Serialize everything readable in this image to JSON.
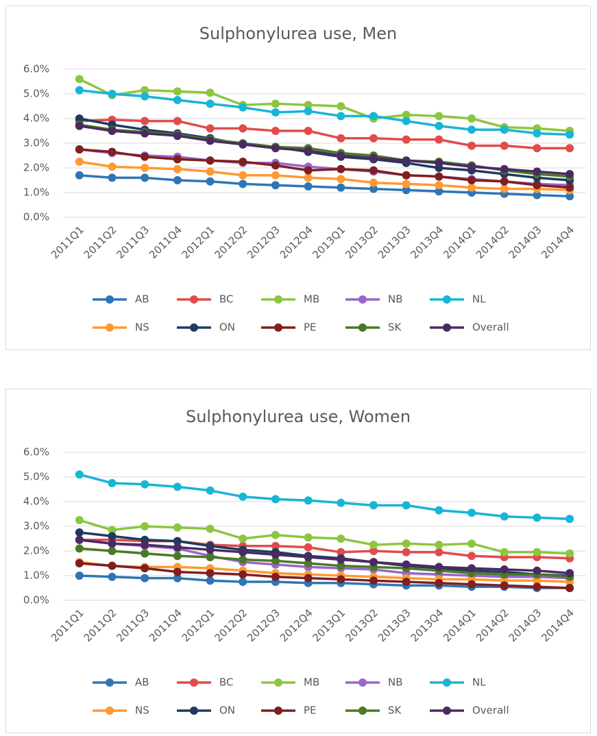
{
  "chart_data": [
    {
      "type": "line",
      "title": "Sulphonylurea use, Men",
      "categories": [
        "2011Q1",
        "2011Q2",
        "2011Q3",
        "2011Q4",
        "2012Q1",
        "2012Q2",
        "2012Q3",
        "2012Q4",
        "2013Q1",
        "2013Q2",
        "2013Q3",
        "2013Q4",
        "2014Q1",
        "2014Q2",
        "2014Q3",
        "2014Q4"
      ],
      "ylim": [
        0,
        6
      ],
      "yticks": [
        {
          "value": 0,
          "label": "0.0%"
        },
        {
          "value": 1,
          "label": "1.0%"
        },
        {
          "value": 2,
          "label": "2.0%"
        },
        {
          "value": 3,
          "label": "3.0%"
        },
        {
          "value": 4,
          "label": "4.0%"
        },
        {
          "value": 5,
          "label": "5.0%"
        },
        {
          "value": 6,
          "label": "6.0%"
        }
      ],
      "grid": true,
      "legend": "bottom",
      "series": [
        {
          "name": "AB",
          "color": "#2e75b6",
          "values": [
            1.7,
            1.6,
            1.6,
            1.5,
            1.45,
            1.35,
            1.3,
            1.25,
            1.2,
            1.15,
            1.1,
            1.05,
            1.0,
            0.95,
            0.9,
            0.85
          ]
        },
        {
          "name": "BC",
          "color": "#e04c4c",
          "values": [
            3.9,
            3.95,
            3.9,
            3.9,
            3.6,
            3.6,
            3.5,
            3.5,
            3.2,
            3.2,
            3.15,
            3.15,
            2.9,
            2.9,
            2.8,
            2.8
          ]
        },
        {
          "name": "MB",
          "color": "#8cc63f",
          "values": [
            5.6,
            4.95,
            5.15,
            5.1,
            5.05,
            4.55,
            4.6,
            4.55,
            4.5,
            4.0,
            4.15,
            4.1,
            4.0,
            3.65,
            3.6,
            3.5
          ]
        },
        {
          "name": "NB",
          "color": "#9966cc",
          "values": [
            2.75,
            2.6,
            2.5,
            2.45,
            2.3,
            2.2,
            2.2,
            2.05,
            1.95,
            1.85,
            1.7,
            1.65,
            1.55,
            1.45,
            1.35,
            1.3
          ]
        },
        {
          "name": "NL",
          "color": "#17b5d6",
          "values": [
            5.15,
            5.0,
            4.9,
            4.75,
            4.6,
            4.45,
            4.25,
            4.3,
            4.1,
            4.1,
            3.9,
            3.7,
            3.55,
            3.55,
            3.4,
            3.35
          ]
        },
        {
          "name": "NS",
          "color": "#ff9933",
          "values": [
            2.25,
            2.05,
            2.0,
            1.95,
            1.85,
            1.7,
            1.7,
            1.6,
            1.55,
            1.4,
            1.35,
            1.3,
            1.2,
            1.15,
            1.15,
            1.1
          ]
        },
        {
          "name": "ON",
          "color": "#1f3a60",
          "values": [
            4.0,
            3.75,
            3.55,
            3.4,
            3.2,
            2.95,
            2.85,
            2.65,
            2.45,
            2.35,
            2.2,
            2.0,
            1.9,
            1.75,
            1.6,
            1.5
          ]
        },
        {
          "name": "PE",
          "color": "#7f1f1f",
          "values": [
            2.75,
            2.65,
            2.45,
            2.35,
            2.3,
            2.25,
            2.1,
            1.9,
            1.95,
            1.9,
            1.7,
            1.65,
            1.5,
            1.45,
            1.3,
            1.2
          ]
        },
        {
          "name": "SK",
          "color": "#4a7a23",
          "values": [
            3.75,
            3.55,
            3.45,
            3.35,
            3.15,
            3.0,
            2.85,
            2.8,
            2.6,
            2.5,
            2.3,
            2.25,
            2.1,
            1.9,
            1.75,
            1.65
          ]
        },
        {
          "name": "Overall",
          "color": "#4b2a63",
          "values": [
            3.7,
            3.5,
            3.4,
            3.3,
            3.1,
            2.95,
            2.8,
            2.7,
            2.5,
            2.4,
            2.3,
            2.2,
            2.05,
            1.95,
            1.85,
            1.75
          ]
        }
      ]
    },
    {
      "type": "line",
      "title": "Sulphonylurea use, Women",
      "categories": [
        "2011Q1",
        "2011Q2",
        "2011Q3",
        "2011Q4",
        "2012Q1",
        "2012Q2",
        "2012Q3",
        "2012Q4",
        "2013Q1",
        "2013Q2",
        "2013Q3",
        "2013Q4",
        "2014Q1",
        "2014Q2",
        "2014Q3",
        "2014Q4"
      ],
      "ylim": [
        0,
        6
      ],
      "yticks": [
        {
          "value": 0,
          "label": "0.0%"
        },
        {
          "value": 1,
          "label": "1.0%"
        },
        {
          "value": 2,
          "label": "2.0%"
        },
        {
          "value": 3,
          "label": "3.0%"
        },
        {
          "value": 4,
          "label": "4.0%"
        },
        {
          "value": 5,
          "label": "5.0%"
        },
        {
          "value": 6,
          "label": "6.0%"
        }
      ],
      "grid": true,
      "legend": "bottom",
      "series": [
        {
          "name": "AB",
          "color": "#2e75b6",
          "values": [
            1.0,
            0.95,
            0.9,
            0.9,
            0.8,
            0.75,
            0.75,
            0.7,
            0.7,
            0.65,
            0.6,
            0.6,
            0.55,
            0.55,
            0.5,
            0.5
          ]
        },
        {
          "name": "BC",
          "color": "#e04c4c",
          "values": [
            2.45,
            2.45,
            2.4,
            2.4,
            2.25,
            2.2,
            2.2,
            2.15,
            1.95,
            2.0,
            1.95,
            1.95,
            1.8,
            1.75,
            1.75,
            1.7
          ]
        },
        {
          "name": "MB",
          "color": "#8cc63f",
          "values": [
            3.25,
            2.85,
            3.0,
            2.95,
            2.9,
            2.5,
            2.65,
            2.55,
            2.5,
            2.25,
            2.3,
            2.25,
            2.3,
            1.95,
            1.95,
            1.9
          ]
        },
        {
          "name": "NB",
          "color": "#9966cc",
          "values": [
            2.45,
            2.3,
            2.2,
            2.1,
            1.8,
            1.55,
            1.45,
            1.35,
            1.3,
            1.25,
            1.1,
            1.05,
            1.0,
            0.95,
            0.95,
            0.9
          ]
        },
        {
          "name": "NL",
          "color": "#17b5d6",
          "values": [
            5.1,
            4.75,
            4.7,
            4.6,
            4.45,
            4.2,
            4.1,
            4.05,
            3.95,
            3.85,
            3.85,
            3.65,
            3.55,
            3.4,
            3.35,
            3.3
          ]
        },
        {
          "name": "NS",
          "color": "#ff9933",
          "values": [
            1.55,
            1.4,
            1.35,
            1.35,
            1.3,
            1.2,
            1.1,
            1.05,
            1.0,
            0.95,
            0.9,
            0.85,
            0.85,
            0.8,
            0.8,
            0.75
          ]
        },
        {
          "name": "ON",
          "color": "#1f3a60",
          "values": [
            2.75,
            2.6,
            2.45,
            2.4,
            2.2,
            2.05,
            1.95,
            1.8,
            1.7,
            1.55,
            1.4,
            1.3,
            1.2,
            1.15,
            1.05,
            1.0
          ]
        },
        {
          "name": "PE",
          "color": "#7f1f1f",
          "values": [
            1.5,
            1.4,
            1.3,
            1.15,
            1.1,
            1.05,
            0.95,
            0.9,
            0.85,
            0.8,
            0.75,
            0.7,
            0.65,
            0.6,
            0.55,
            0.5
          ]
        },
        {
          "name": "SK",
          "color": "#4a7a23",
          "values": [
            2.1,
            2.0,
            1.9,
            1.8,
            1.75,
            1.65,
            1.6,
            1.5,
            1.4,
            1.35,
            1.3,
            1.2,
            1.1,
            1.05,
            1.05,
            0.95
          ]
        },
        {
          "name": "Overall",
          "color": "#4b2a63",
          "values": [
            2.45,
            2.3,
            2.25,
            2.15,
            2.05,
            1.95,
            1.85,
            1.75,
            1.65,
            1.55,
            1.45,
            1.35,
            1.3,
            1.25,
            1.2,
            1.1
          ]
        }
      ]
    }
  ]
}
